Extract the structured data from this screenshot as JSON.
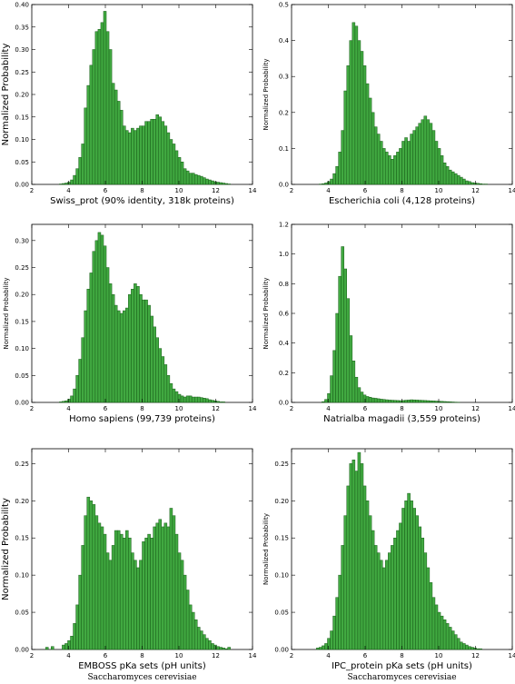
{
  "chart_data": [
    {
      "type": "bar",
      "xlabel": "Swiss_prot (90% identity, 318k proteins)",
      "ylabel": "Normalized Probability",
      "xlim": [
        2,
        14
      ],
      "ylim": [
        0,
        0.4
      ],
      "xticks": [
        2,
        4,
        6,
        8,
        10,
        12,
        14
      ],
      "yticks": [
        "0.00",
        "0.05",
        "0.10",
        "0.15",
        "0.20",
        "0.25",
        "0.30",
        "0.35",
        "0.40"
      ],
      "bin_start": 2.0,
      "bin_width": 0.15,
      "values": [
        0,
        0,
        0,
        0,
        0,
        0,
        0,
        0,
        0,
        0,
        0.001,
        0.002,
        0.003,
        0.005,
        0.01,
        0.02,
        0.035,
        0.06,
        0.09,
        0.17,
        0.22,
        0.265,
        0.3,
        0.34,
        0.345,
        0.36,
        0.385,
        0.34,
        0.3,
        0.225,
        0.21,
        0.185,
        0.165,
        0.13,
        0.12,
        0.115,
        0.125,
        0.12,
        0.125,
        0.13,
        0.13,
        0.14,
        0.14,
        0.145,
        0.145,
        0.155,
        0.15,
        0.14,
        0.13,
        0.115,
        0.1,
        0.09,
        0.075,
        0.06,
        0.05,
        0.035,
        0.03,
        0.025,
        0.025,
        0.022,
        0.02,
        0.018,
        0.015,
        0.012,
        0.01,
        0.008,
        0.006,
        0.005,
        0.004,
        0.003,
        0.002,
        0.001
      ],
      "ylabel_size": 10
    },
    {
      "type": "bar",
      "xlabel": "Escherichia coli (4,128 proteins)",
      "ylabel": "Normalized Probability",
      "xlim": [
        2,
        14
      ],
      "ylim": [
        0,
        0.5
      ],
      "xticks": [
        2,
        4,
        6,
        8,
        10,
        12,
        14
      ],
      "yticks": [
        "0.0",
        "0.1",
        "0.2",
        "0.3",
        "0.4",
        "0.5"
      ],
      "bin_start": 2.0,
      "bin_width": 0.15,
      "values": [
        0,
        0,
        0,
        0,
        0,
        0,
        0,
        0,
        0,
        0,
        0.001,
        0.002,
        0.004,
        0.008,
        0.015,
        0.03,
        0.05,
        0.09,
        0.15,
        0.26,
        0.33,
        0.4,
        0.45,
        0.44,
        0.4,
        0.37,
        0.33,
        0.28,
        0.24,
        0.2,
        0.16,
        0.14,
        0.12,
        0.1,
        0.09,
        0.08,
        0.07,
        0.08,
        0.09,
        0.1,
        0.12,
        0.13,
        0.12,
        0.14,
        0.15,
        0.16,
        0.17,
        0.18,
        0.19,
        0.18,
        0.17,
        0.15,
        0.12,
        0.1,
        0.08,
        0.06,
        0.05,
        0.04,
        0.035,
        0.03,
        0.025,
        0.02,
        0.015,
        0.01,
        0.008,
        0.005,
        0.004,
        0.003,
        0.002,
        0.001,
        0.001,
        0
      ],
      "ylabel_size": 7
    },
    {
      "type": "bar",
      "xlabel": "Homo sapiens (99,739 proteins)",
      "ylabel": "Normalized Probability",
      "xlim": [
        2,
        14
      ],
      "ylim": [
        0,
        0.33
      ],
      "xticks": [
        2,
        4,
        6,
        8,
        10,
        12,
        14
      ],
      "yticks": [
        "0.00",
        "0.05",
        "0.10",
        "0.15",
        "0.20",
        "0.25",
        "0.30"
      ],
      "bin_start": 2.0,
      "bin_width": 0.15,
      "values": [
        0,
        0,
        0,
        0,
        0,
        0,
        0,
        0,
        0,
        0,
        0.001,
        0.002,
        0.003,
        0.006,
        0.012,
        0.025,
        0.05,
        0.08,
        0.12,
        0.17,
        0.21,
        0.24,
        0.28,
        0.3,
        0.315,
        0.31,
        0.29,
        0.25,
        0.22,
        0.2,
        0.18,
        0.17,
        0.165,
        0.17,
        0.175,
        0.2,
        0.21,
        0.22,
        0.215,
        0.2,
        0.19,
        0.19,
        0.18,
        0.16,
        0.14,
        0.12,
        0.1,
        0.085,
        0.07,
        0.05,
        0.035,
        0.025,
        0.02,
        0.015,
        0.012,
        0.01,
        0.012,
        0.012,
        0.01,
        0.01,
        0.01,
        0.009,
        0.008,
        0.007,
        0.005,
        0.004,
        0.003,
        0.002,
        0.001,
        0.001,
        0,
        0
      ],
      "ylabel_size": 7
    },
    {
      "type": "bar",
      "xlabel": "Natrialba magadii (3,559 proteins)",
      "ylabel": "Normalized Probability",
      "xlim": [
        2,
        14
      ],
      "ylim": [
        0,
        1.2
      ],
      "xticks": [
        2,
        4,
        6,
        8,
        10,
        12,
        14
      ],
      "yticks": [
        "0.0",
        "0.2",
        "0.4",
        "0.6",
        "0.8",
        "1.0",
        "1.2"
      ],
      "bin_start": 2.0,
      "bin_width": 0.15,
      "values": [
        0,
        0,
        0,
        0,
        0,
        0,
        0,
        0,
        0,
        0,
        0,
        0.005,
        0.02,
        0.06,
        0.18,
        0.35,
        0.6,
        0.85,
        1.05,
        0.9,
        0.7,
        0.45,
        0.28,
        0.17,
        0.1,
        0.07,
        0.05,
        0.04,
        0.035,
        0.03,
        0.028,
        0.025,
        0.022,
        0.02,
        0.018,
        0.016,
        0.015,
        0.014,
        0.013,
        0.012,
        0.013,
        0.015,
        0.016,
        0.018,
        0.017,
        0.016,
        0.015,
        0.014,
        0.013,
        0.012,
        0.011,
        0.01,
        0.009,
        0.008,
        0.007,
        0.006,
        0.005,
        0.004,
        0.003,
        0.002,
        0.001,
        0,
        0,
        0,
        0,
        0,
        0,
        0,
        0,
        0,
        0,
        0
      ],
      "ylabel_size": 7
    },
    {
      "type": "bar",
      "xlabel": "EMBOSS pKa sets (pH units)",
      "ylabel": "Normalized Probability",
      "caption": "Saccharomyces cerevisiae",
      "xlim": [
        2,
        14
      ],
      "ylim": [
        0,
        0.27
      ],
      "xticks": [
        2,
        4,
        6,
        8,
        10,
        12,
        14
      ],
      "yticks": [
        "0.00",
        "0.05",
        "0.10",
        "0.15",
        "0.20",
        "0.25"
      ],
      "bin_start": 2.0,
      "bin_width": 0.15,
      "values": [
        0,
        0,
        0,
        0,
        0,
        0.003,
        0,
        0.004,
        0,
        0,
        0,
        0.006,
        0.008,
        0.012,
        0.018,
        0.035,
        0.06,
        0.1,
        0.14,
        0.18,
        0.205,
        0.2,
        0.195,
        0.18,
        0.17,
        0.165,
        0.155,
        0.13,
        0.12,
        0.14,
        0.16,
        0.16,
        0.155,
        0.15,
        0.16,
        0.15,
        0.13,
        0.12,
        0.11,
        0.12,
        0.145,
        0.15,
        0.155,
        0.15,
        0.165,
        0.17,
        0.175,
        0.165,
        0.17,
        0.165,
        0.19,
        0.18,
        0.155,
        0.13,
        0.12,
        0.1,
        0.08,
        0.06,
        0.05,
        0.04,
        0.03,
        0.025,
        0.02,
        0.015,
        0.012,
        0.008,
        0.006,
        0.004,
        0.003,
        0.002,
        0.001,
        0.003
      ],
      "ylabel_size": 10
    },
    {
      "type": "bar",
      "xlabel": "IPC_protein pKa sets (pH units)",
      "ylabel": "Normalized Probability",
      "caption": "Saccharomyces cerevisiae",
      "xlim": [
        2,
        14
      ],
      "ylim": [
        0,
        0.27
      ],
      "xticks": [
        2,
        4,
        6,
        8,
        10,
        12,
        14
      ],
      "yticks": [
        "0.00",
        "0.05",
        "0.10",
        "0.15",
        "0.20",
        "0.25"
      ],
      "bin_start": 2.0,
      "bin_width": 0.15,
      "values": [
        0,
        0,
        0,
        0,
        0,
        0,
        0,
        0,
        0,
        0.002,
        0.003,
        0.005,
        0.008,
        0.015,
        0.025,
        0.045,
        0.07,
        0.1,
        0.14,
        0.18,
        0.22,
        0.25,
        0.255,
        0.24,
        0.265,
        0.25,
        0.22,
        0.2,
        0.18,
        0.16,
        0.14,
        0.13,
        0.12,
        0.11,
        0.12,
        0.13,
        0.14,
        0.15,
        0.16,
        0.17,
        0.19,
        0.2,
        0.21,
        0.2,
        0.19,
        0.18,
        0.165,
        0.15,
        0.13,
        0.11,
        0.09,
        0.07,
        0.06,
        0.05,
        0.045,
        0.04,
        0.035,
        0.03,
        0.025,
        0.02,
        0.015,
        0.01,
        0.008,
        0.006,
        0.004,
        0.003,
        0.002,
        0.001,
        0.001,
        0,
        0,
        0
      ],
      "ylabel_size": 7
    }
  ]
}
